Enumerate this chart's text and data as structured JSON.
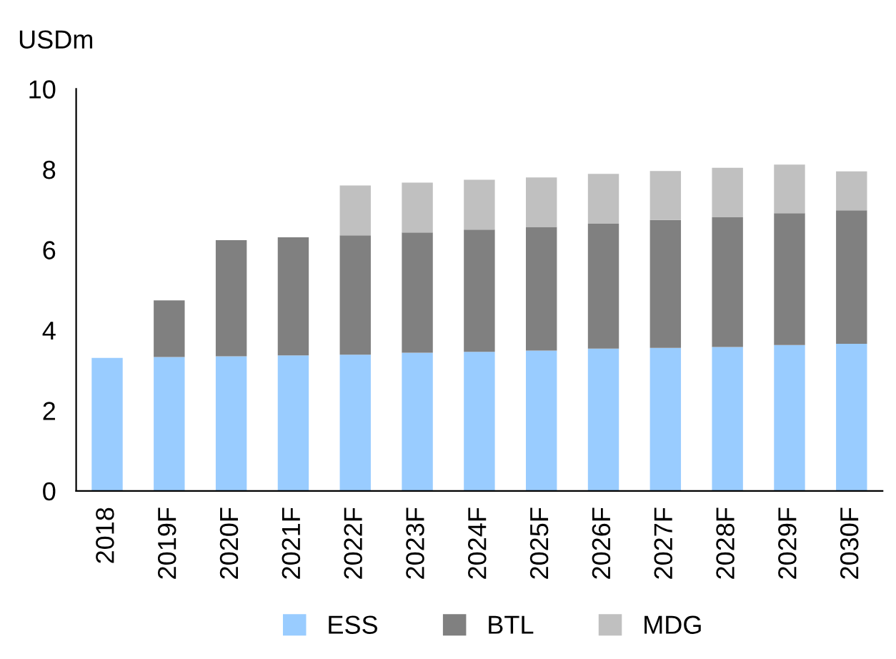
{
  "chart_data": {
    "type": "bar",
    "stacked": true,
    "ylabel": "USDm",
    "categories": [
      "2018",
      "2019F",
      "2020F",
      "2021F",
      "2022F",
      "2023F",
      "2024F",
      "2025F",
      "2026F",
      "2027F",
      "2028F",
      "2029F",
      "2030F"
    ],
    "series": [
      {
        "name": "ESS",
        "color": "#99ccff",
        "values": [
          3.31,
          3.33,
          3.35,
          3.37,
          3.39,
          3.44,
          3.46,
          3.49,
          3.54,
          3.56,
          3.58,
          3.63,
          3.66
        ]
      },
      {
        "name": "BTL",
        "color": "#808080",
        "values": [
          null,
          1.41,
          2.89,
          2.94,
          2.97,
          2.99,
          3.04,
          3.08,
          3.11,
          3.18,
          3.23,
          3.28,
          3.32
        ]
      },
      {
        "name": "MDG",
        "color": "#c0c0c0",
        "values": [
          null,
          null,
          null,
          null,
          1.24,
          1.24,
          1.24,
          1.23,
          1.24,
          1.22,
          1.23,
          1.21,
          0.97
        ]
      }
    ],
    "ylim": [
      0,
      10
    ],
    "yticks": [
      0,
      2,
      4,
      6,
      8,
      10
    ],
    "grid": false,
    "legend": "bottom"
  }
}
